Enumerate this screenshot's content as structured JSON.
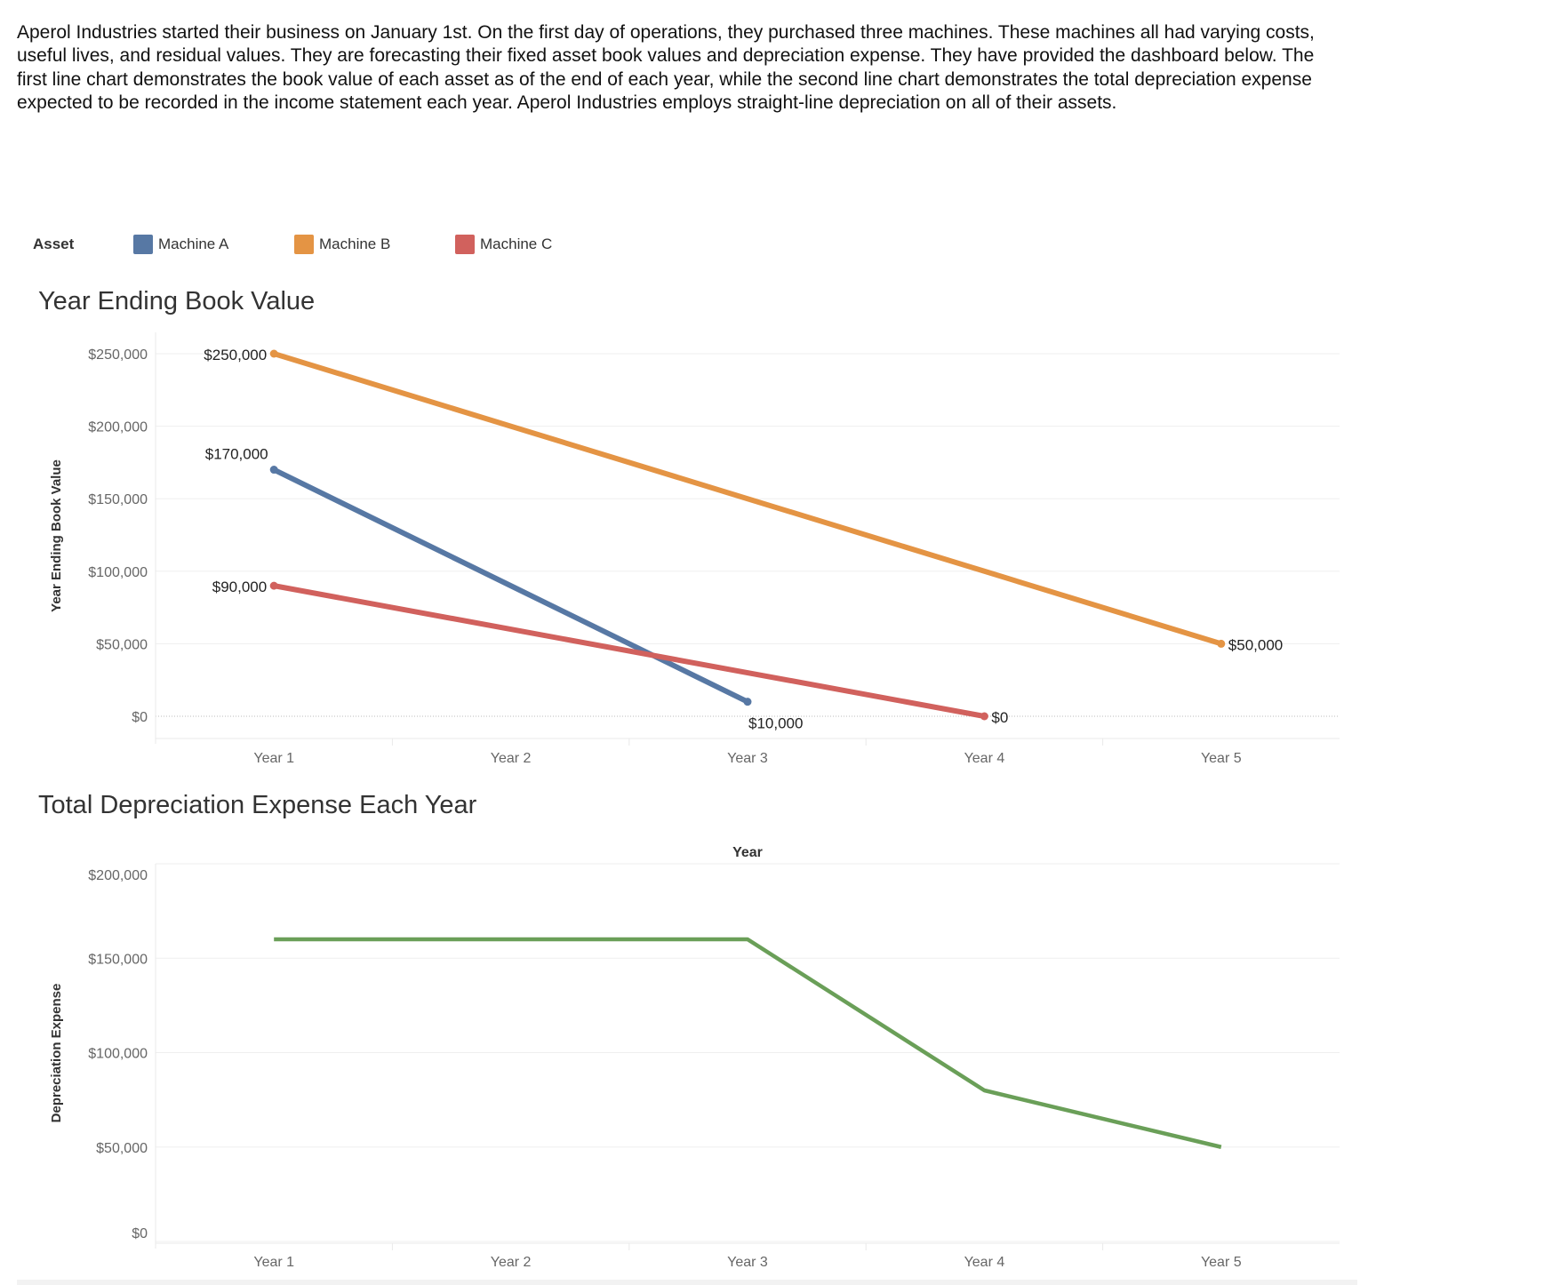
{
  "intro": "Aperol Industries started their business on January 1st. On the first day of operations, they purchased three machines. These machines all had varying costs, useful lives, and residual values. They are forecasting their fixed asset book values and depreciation expense. They have provided the dashboard below. The first line chart demonstrates the book value of each asset as of the end of each year, while the second line chart demonstrates the total depreciation expense expected to be recorded in the income statement each year. Aperol Industries employs straight-line depreciation on all of their assets.",
  "legend": {
    "title": "Asset",
    "items": [
      {
        "label": "Machine A",
        "color": "#5778a4"
      },
      {
        "label": "Machine B",
        "color": "#e49444"
      },
      {
        "label": "Machine C",
        "color": "#d1615d"
      }
    ]
  },
  "chart_data": [
    {
      "type": "line",
      "title": "Year Ending Book Value",
      "xlabel": "",
      "ylabel": "Year Ending Book Value",
      "categories": [
        "Year 1",
        "Year 2",
        "Year 3",
        "Year 4",
        "Year 5"
      ],
      "yticks": [
        "$0",
        "$50,000",
        "$100,000",
        "$150,000",
        "$200,000",
        "$250,000"
      ],
      "ylim": [
        0,
        250000
      ],
      "grid": true,
      "legend": "top",
      "series": [
        {
          "name": "Machine A",
          "color": "#5778a4",
          "values": [
            170000,
            90000,
            10000,
            null,
            null
          ],
          "labels": [
            {
              "index": 0,
              "text": "$170,000",
              "pos": "above"
            },
            {
              "index": 2,
              "text": "$10,000",
              "pos": "below-right"
            }
          ]
        },
        {
          "name": "Machine B",
          "color": "#e49444",
          "values": [
            250000,
            200000,
            150000,
            100000,
            50000
          ],
          "labels": [
            {
              "index": 0,
              "text": "$250,000",
              "pos": "left"
            },
            {
              "index": 4,
              "text": "$50,000",
              "pos": "right"
            }
          ]
        },
        {
          "name": "Machine C",
          "color": "#d1615d",
          "values": [
            90000,
            60000,
            30000,
            0,
            null
          ],
          "labels": [
            {
              "index": 0,
              "text": "$90,000",
              "pos": "left"
            },
            {
              "index": 3,
              "text": "$0",
              "pos": "right"
            }
          ]
        }
      ]
    },
    {
      "type": "line",
      "title": "Total Depreciation Expense Each Year",
      "header": "Year",
      "ylabel": "Depreciation Expense",
      "categories": [
        "Year 1",
        "Year 2",
        "Year 3",
        "Year 4",
        "Year 5"
      ],
      "yticks": [
        "$0",
        "$50,000",
        "$100,000",
        "$150,000",
        "$200,000"
      ],
      "ylim": [
        0,
        200000
      ],
      "grid": true,
      "series": [
        {
          "color": "#6a9f58",
          "values": [
            160000,
            160000,
            160000,
            80000,
            50000
          ]
        }
      ]
    }
  ]
}
